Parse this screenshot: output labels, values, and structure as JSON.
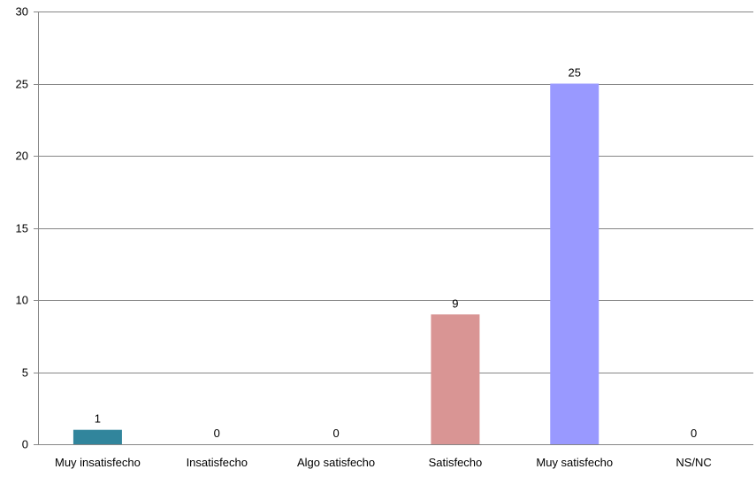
{
  "chart_data": {
    "type": "bar",
    "categories": [
      "Muy insatisfecho",
      "Insatisfecho",
      "Algo satisfecho",
      "Satisfecho",
      "Muy satisfecho",
      "NS/NC"
    ],
    "values": [
      1,
      0,
      0,
      9,
      25,
      0
    ],
    "data_labels": [
      "1",
      "0",
      "0",
      "9",
      "25",
      "0"
    ],
    "bar_colors": [
      "#31859C",
      "#4F81BD",
      "#9BBB59",
      "#D99594",
      "#9999FF",
      "#8064A2"
    ],
    "ylim": [
      0,
      30
    ],
    "yticks": [
      0,
      5,
      10,
      15,
      20,
      25,
      30
    ],
    "ytick_labels": [
      "0",
      "5",
      "10",
      "15",
      "20",
      "25",
      "30"
    ],
    "grid": true,
    "legend": "none"
  }
}
